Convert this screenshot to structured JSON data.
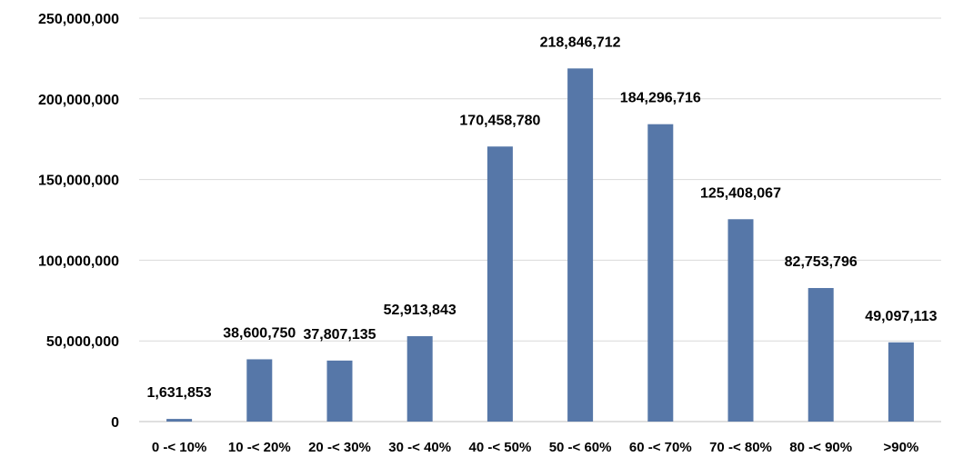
{
  "chart_data": {
    "type": "bar",
    "title": "",
    "xlabel": "",
    "ylabel": "",
    "categories": [
      "0 -< 10%",
      "10 -< 20%",
      "20 -< 30%",
      "30 -< 40%",
      "40 -< 50%",
      "50 -< 60%",
      "60 -< 70%",
      "70 -< 80%",
      "80 -< 90%",
      ">90%"
    ],
    "values": [
      1631853,
      38600750,
      37807135,
      52913843,
      170458780,
      218846712,
      184296716,
      125408067,
      82753796,
      49097113
    ],
    "data_labels": [
      "1,631,853",
      "38,600,750",
      "37,807,135",
      "52,913,843",
      "170,458,780",
      "218,846,712",
      "184,296,716",
      "125,408,067",
      "82,753,796",
      "49,097,113"
    ],
    "ylim": [
      0,
      250000000
    ],
    "yticks": [
      0,
      50000000,
      100000000,
      150000000,
      200000000,
      250000000
    ],
    "ytick_labels": [
      "0",
      "50,000,000",
      "100,000,000",
      "150,000,000",
      "200,000,000",
      "250,000,000"
    ],
    "grid": true,
    "legend": "none",
    "bar_color": "#5677a8",
    "grid_color": "#d9d9d9"
  }
}
